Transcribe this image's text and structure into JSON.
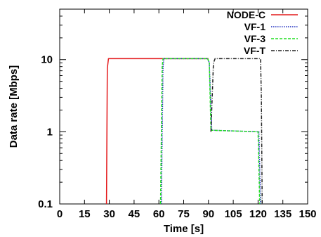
{
  "chart_data": {
    "type": "line",
    "title": "",
    "xlabel": "Time [s]",
    "ylabel": "Data rate [Mbps]",
    "xlim": [
      0,
      150
    ],
    "ylim": [
      0.1,
      50
    ],
    "yscale": "log",
    "grid": false,
    "legend": "top-right",
    "x_ticks": [
      "0",
      "15",
      "30",
      "45",
      "60",
      "75",
      "90",
      "105",
      "120",
      "135",
      "150"
    ],
    "y_ticks": [
      {
        "value": 0.1,
        "label": "0.1"
      },
      {
        "value": 1,
        "label": "1"
      },
      {
        "value": 10,
        "label": "10"
      }
    ],
    "series": [
      {
        "name": "NODE-C",
        "color": "#e41a1c",
        "dash": "solid",
        "points": [
          [
            28.3,
            0.1
          ],
          [
            28.8,
            7.5
          ],
          [
            29.5,
            10.3
          ],
          [
            90,
            10.3
          ]
        ]
      },
      {
        "name": "VF-1",
        "color": "#1f2fbf",
        "dash": "dotted",
        "points": [
          [
            61.5,
            0.1
          ],
          [
            62.5,
            8
          ],
          [
            63,
            10.3
          ],
          [
            89.5,
            10.3
          ],
          [
            90.5,
            9
          ],
          [
            92,
            1.05
          ],
          [
            120.5,
            1.0
          ],
          [
            121.5,
            0.1
          ]
        ]
      },
      {
        "name": "VF-3",
        "color": "#22dd22",
        "dash": "dashed",
        "points": [
          [
            61,
            0.1
          ],
          [
            62,
            8
          ],
          [
            62.5,
            10.3
          ],
          [
            89.5,
            10.3
          ],
          [
            90.5,
            9
          ],
          [
            91.5,
            1.05
          ],
          [
            120,
            1.0
          ],
          [
            121,
            0.1
          ]
        ]
      },
      {
        "name": "VF-T",
        "color": "#222222",
        "dash": "dashdot",
        "points": [
          [
            91.5,
            1.0
          ],
          [
            93,
            9
          ],
          [
            94,
            10.3
          ],
          [
            121.5,
            10.3
          ],
          [
            122,
            3
          ],
          [
            122.5,
            0.1
          ]
        ]
      }
    ]
  }
}
